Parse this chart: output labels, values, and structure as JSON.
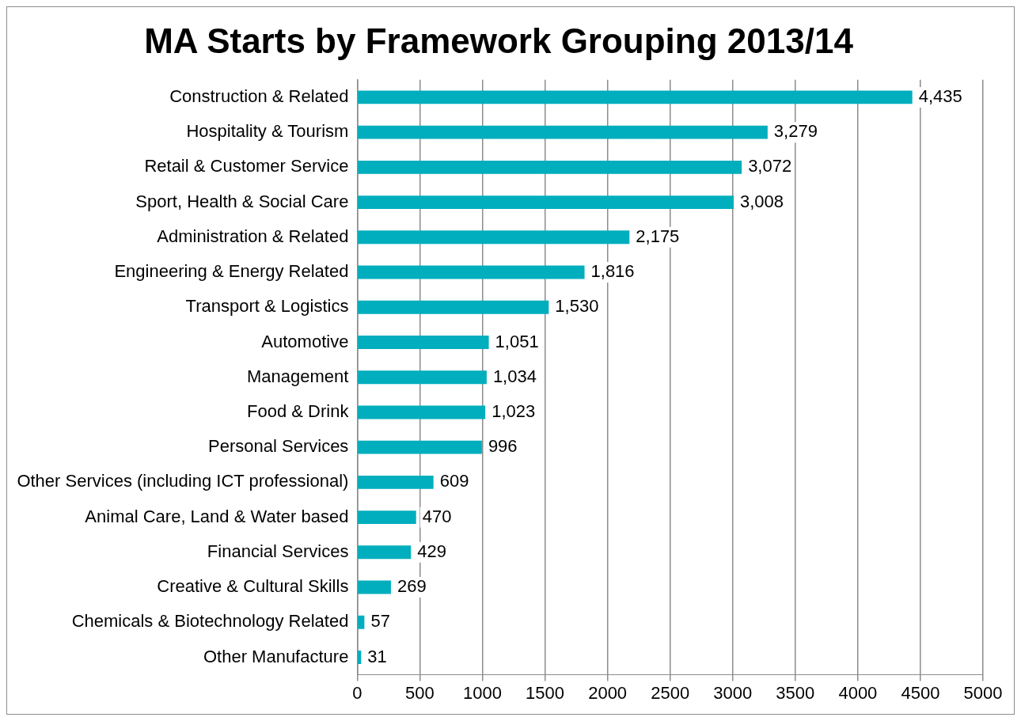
{
  "chart_data": {
    "type": "bar",
    "orientation": "horizontal",
    "title": "MA Starts by Framework Grouping 2013/14",
    "categories": [
      "Construction & Related",
      "Hospitality & Tourism",
      "Retail & Customer Service",
      "Sport, Health & Social Care",
      "Administration & Related",
      "Engineering & Energy Related",
      "Transport & Logistics",
      "Automotive",
      "Management",
      "Food & Drink",
      "Personal Services",
      "Other Services (including ICT professional)",
      "Animal Care, Land & Water based",
      "Financial Services",
      "Creative & Cultural Skills",
      "Chemicals & Biotechnology Related",
      "Other Manufacture"
    ],
    "values": [
      4435,
      3279,
      3072,
      3008,
      2175,
      1816,
      1530,
      1051,
      1034,
      1023,
      996,
      609,
      470,
      429,
      269,
      57,
      31
    ],
    "value_labels": [
      "4,435",
      "3,279",
      "3,072",
      "3,008",
      "2,175",
      "1,816",
      "1,530",
      "1,051",
      "1,034",
      "1,023",
      "996",
      "609",
      "470",
      "429",
      "269",
      "57",
      "31"
    ],
    "color": "#00aebd",
    "xlim": [
      0,
      5000
    ],
    "xticks": [
      0,
      500,
      1000,
      1500,
      2000,
      2500,
      3000,
      3500,
      4000,
      4500,
      5000
    ],
    "grid": "x",
    "legend": false
  }
}
